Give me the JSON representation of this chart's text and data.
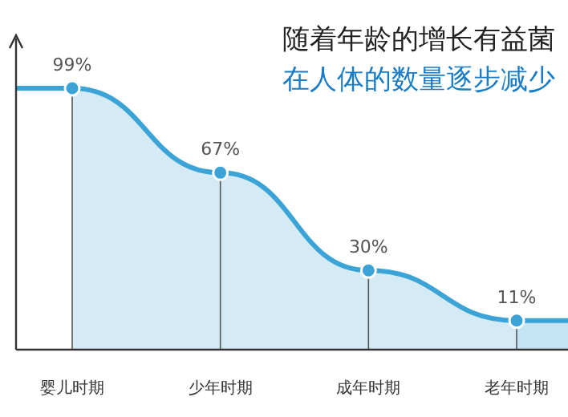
{
  "chart_data": {
    "type": "area",
    "title": "随着年龄的增长有益菌",
    "subtitle": "在人体的数量逐步减少",
    "categories": [
      "婴儿时期",
      "少年时期",
      "成年时期",
      "老年时期"
    ],
    "values": [
      99,
      67,
      30,
      11
    ],
    "value_labels": [
      "99%",
      "67%",
      "30%",
      "11%"
    ],
    "color": "#3ba3d6",
    "marker": "circle"
  }
}
